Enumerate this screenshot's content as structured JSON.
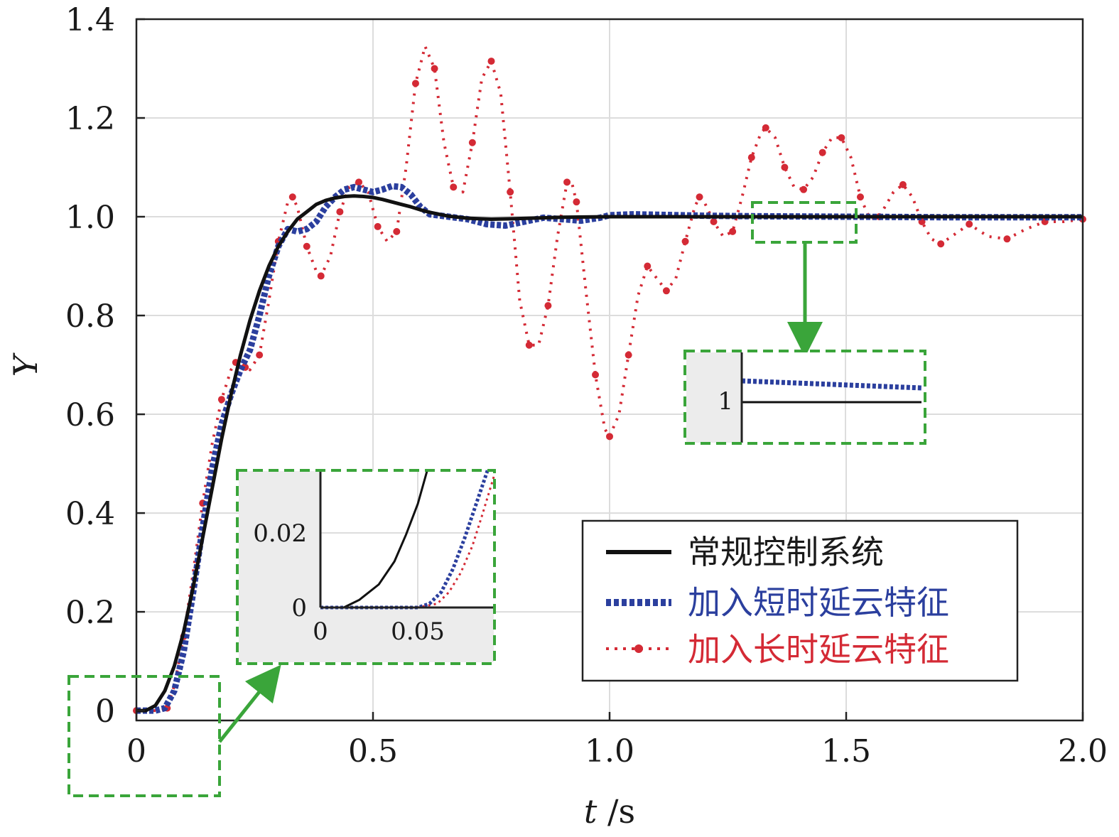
{
  "chart_data": {
    "type": "line",
    "xlabel_italic": "t",
    "xlabel_unit": " /s",
    "ylabel": "Y",
    "xlim": [
      0,
      2.0
    ],
    "ylim": [
      -0.02,
      1.4
    ],
    "x_ticks": [
      "0",
      "0.5",
      "1.0",
      "1.5",
      "2.0"
    ],
    "x_tick_values": [
      0,
      0.5,
      1.0,
      1.5,
      2.0
    ],
    "y_ticks": [
      "0",
      "0.2",
      "0.4",
      "0.6",
      "0.8",
      "1.0",
      "1.2",
      "1.4"
    ],
    "y_tick_values": [
      0,
      0.2,
      0.4,
      0.6,
      0.8,
      1.0,
      1.2,
      1.4
    ],
    "grid": true,
    "legend_position": "lower-right",
    "series": [
      {
        "name": "常规控制系统",
        "color": "#111111",
        "style": "solid",
        "points": [
          [
            0,
            0
          ],
          [
            0.02,
            0.0
          ],
          [
            0.04,
            0.01
          ],
          [
            0.06,
            0.04
          ],
          [
            0.08,
            0.09
          ],
          [
            0.1,
            0.16
          ],
          [
            0.12,
            0.25
          ],
          [
            0.14,
            0.35
          ],
          [
            0.16,
            0.45
          ],
          [
            0.18,
            0.55
          ],
          [
            0.2,
            0.64
          ],
          [
            0.22,
            0.72
          ],
          [
            0.24,
            0.79
          ],
          [
            0.26,
            0.85
          ],
          [
            0.28,
            0.9
          ],
          [
            0.3,
            0.94
          ],
          [
            0.32,
            0.97
          ],
          [
            0.34,
            0.995
          ],
          [
            0.36,
            1.01
          ],
          [
            0.38,
            1.025
          ],
          [
            0.4,
            1.033
          ],
          [
            0.42,
            1.038
          ],
          [
            0.44,
            1.041
          ],
          [
            0.46,
            1.042
          ],
          [
            0.48,
            1.041
          ],
          [
            0.5,
            1.039
          ],
          [
            0.52,
            1.035
          ],
          [
            0.54,
            1.03
          ],
          [
            0.56,
            1.025
          ],
          [
            0.58,
            1.02
          ],
          [
            0.6,
            1.014
          ],
          [
            0.62,
            1.009
          ],
          [
            0.64,
            1.005
          ],
          [
            0.66,
            1.001
          ],
          [
            0.7,
            0.997
          ],
          [
            0.75,
            0.995
          ],
          [
            0.8,
            0.996
          ],
          [
            0.9,
            0.999
          ],
          [
            1.0,
            1.0
          ],
          [
            1.2,
            1.0
          ],
          [
            1.5,
            1.0
          ],
          [
            2.0,
            1.0
          ]
        ]
      },
      {
        "name": "加入短时延云特征",
        "color": "#2b3f9e",
        "style": "dotted-square",
        "points": [
          [
            0,
            0
          ],
          [
            0.04,
            0.0
          ],
          [
            0.06,
            0.005
          ],
          [
            0.08,
            0.04
          ],
          [
            0.1,
            0.12
          ],
          [
            0.12,
            0.24
          ],
          [
            0.14,
            0.37
          ],
          [
            0.16,
            0.49
          ],
          [
            0.18,
            0.58
          ],
          [
            0.2,
            0.64
          ],
          [
            0.22,
            0.69
          ],
          [
            0.24,
            0.73
          ],
          [
            0.26,
            0.8
          ],
          [
            0.28,
            0.88
          ],
          [
            0.3,
            0.94
          ],
          [
            0.32,
            0.975
          ],
          [
            0.34,
            0.97
          ],
          [
            0.36,
            0.975
          ],
          [
            0.38,
            0.99
          ],
          [
            0.4,
            1.02
          ],
          [
            0.42,
            1.04
          ],
          [
            0.44,
            1.055
          ],
          [
            0.46,
            1.06
          ],
          [
            0.48,
            1.055
          ],
          [
            0.5,
            1.05
          ],
          [
            0.52,
            1.055
          ],
          [
            0.54,
            1.062
          ],
          [
            0.56,
            1.06
          ],
          [
            0.58,
            1.045
          ],
          [
            0.6,
            1.02
          ],
          [
            0.62,
            1.005
          ],
          [
            0.66,
            1.0
          ],
          [
            0.7,
            0.995
          ],
          [
            0.74,
            0.985
          ],
          [
            0.78,
            0.982
          ],
          [
            0.82,
            0.99
          ],
          [
            0.86,
            0.998
          ],
          [
            0.9,
            0.995
          ],
          [
            0.94,
            0.992
          ],
          [
            0.98,
            0.998
          ],
          [
            1.0,
            1.003
          ],
          [
            1.05,
            1.005
          ],
          [
            1.1,
            1.004
          ],
          [
            1.2,
            1.002
          ],
          [
            1.3,
            1.001
          ],
          [
            1.5,
            1.0
          ],
          [
            1.7,
            0.999
          ],
          [
            2.0,
            0.999
          ]
        ]
      },
      {
        "name": "加入长时延云特征",
        "color": "#d42a35",
        "style": "dash-dot",
        "points": [
          [
            0,
            0
          ],
          [
            0.05,
            0.0
          ],
          [
            0.065,
            0.005
          ],
          [
            0.08,
            0.05
          ],
          [
            0.1,
            0.15
          ],
          [
            0.12,
            0.28
          ],
          [
            0.14,
            0.42
          ],
          [
            0.16,
            0.54
          ],
          [
            0.18,
            0.63
          ],
          [
            0.2,
            0.69
          ],
          [
            0.21,
            0.705
          ],
          [
            0.22,
            0.705
          ],
          [
            0.23,
            0.695
          ],
          [
            0.24,
            0.69
          ],
          [
            0.26,
            0.72
          ],
          [
            0.28,
            0.83
          ],
          [
            0.3,
            0.95
          ],
          [
            0.32,
            1.03
          ],
          [
            0.33,
            1.04
          ],
          [
            0.34,
            1.02
          ],
          [
            0.36,
            0.94
          ],
          [
            0.38,
            0.89
          ],
          [
            0.39,
            0.88
          ],
          [
            0.41,
            0.92
          ],
          [
            0.43,
            1.01
          ],
          [
            0.45,
            1.06
          ],
          [
            0.47,
            1.07
          ],
          [
            0.49,
            1.05
          ],
          [
            0.51,
            0.98
          ],
          [
            0.53,
            0.95
          ],
          [
            0.55,
            0.97
          ],
          [
            0.57,
            1.1
          ],
          [
            0.59,
            1.27
          ],
          [
            0.61,
            1.345
          ],
          [
            0.63,
            1.3
          ],
          [
            0.65,
            1.15
          ],
          [
            0.67,
            1.06
          ],
          [
            0.69,
            1.05
          ],
          [
            0.71,
            1.15
          ],
          [
            0.73,
            1.28
          ],
          [
            0.75,
            1.315
          ],
          [
            0.77,
            1.25
          ],
          [
            0.79,
            1.05
          ],
          [
            0.81,
            0.83
          ],
          [
            0.83,
            0.74
          ],
          [
            0.85,
            0.74
          ],
          [
            0.87,
            0.82
          ],
          [
            0.89,
            0.96
          ],
          [
            0.91,
            1.07
          ],
          [
            0.92,
            1.07
          ],
          [
            0.93,
            1.03
          ],
          [
            0.95,
            0.85
          ],
          [
            0.97,
            0.68
          ],
          [
            0.99,
            0.57
          ],
          [
            1.0,
            0.555
          ],
          [
            1.02,
            0.6
          ],
          [
            1.04,
            0.72
          ],
          [
            1.06,
            0.84
          ],
          [
            1.08,
            0.9
          ],
          [
            1.1,
            0.875
          ],
          [
            1.12,
            0.85
          ],
          [
            1.14,
            0.875
          ],
          [
            1.16,
            0.95
          ],
          [
            1.18,
            1.02
          ],
          [
            1.19,
            1.04
          ],
          [
            1.2,
            1.03
          ],
          [
            1.22,
            0.99
          ],
          [
            1.24,
            0.96
          ],
          [
            1.26,
            0.97
          ],
          [
            1.28,
            1.04
          ],
          [
            1.3,
            1.12
          ],
          [
            1.32,
            1.17
          ],
          [
            1.33,
            1.18
          ],
          [
            1.35,
            1.16
          ],
          [
            1.37,
            1.1
          ],
          [
            1.39,
            1.06
          ],
          [
            1.41,
            1.055
          ],
          [
            1.43,
            1.08
          ],
          [
            1.45,
            1.13
          ],
          [
            1.47,
            1.16
          ],
          [
            1.49,
            1.16
          ],
          [
            1.51,
            1.12
          ],
          [
            1.53,
            1.04
          ],
          [
            1.55,
            0.995
          ],
          [
            1.57,
            1.0
          ],
          [
            1.6,
            1.05
          ],
          [
            1.62,
            1.065
          ],
          [
            1.64,
            1.04
          ],
          [
            1.66,
            0.99
          ],
          [
            1.68,
            0.955
          ],
          [
            1.7,
            0.945
          ],
          [
            1.73,
            0.965
          ],
          [
            1.76,
            0.985
          ],
          [
            1.8,
            0.96
          ],
          [
            1.84,
            0.955
          ],
          [
            1.88,
            0.975
          ],
          [
            1.92,
            0.99
          ],
          [
            1.96,
            0.99
          ],
          [
            2.0,
            0.995
          ]
        ]
      }
    ],
    "insets": [
      {
        "ytick": "0.02",
        "ytick0": "0",
        "xtick0": "0",
        "xtick1": "0.05"
      },
      {
        "ytick": "1"
      }
    ],
    "legend": [
      "常规控制系统",
      "加入短时延云特征",
      "加入长时延云特征"
    ]
  },
  "annotation_colors": {
    "highlight_box": "#3aa53a",
    "inset_bg": "#ececec"
  }
}
